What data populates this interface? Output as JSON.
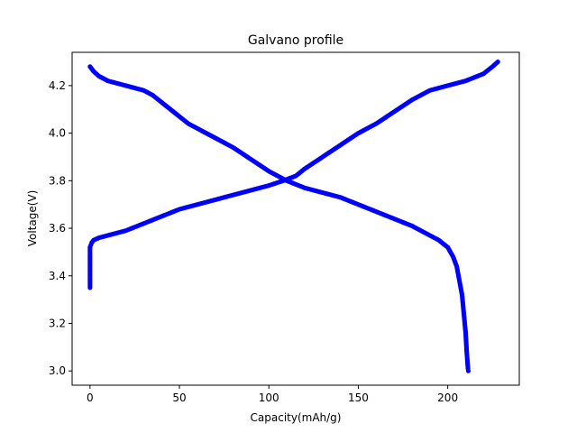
{
  "chart_data": {
    "type": "scatter",
    "title": "Galvano profile",
    "xlabel": "Capacity(mAh/g)",
    "ylabel": "Voltage(V)",
    "xlim": [
      -10,
      240
    ],
    "ylim": [
      2.94,
      4.34
    ],
    "xticks": [
      0,
      50,
      100,
      150,
      200
    ],
    "yticks": [
      3.0,
      3.2,
      3.4,
      3.6,
      3.8,
      4.0,
      4.2
    ],
    "xtick_labels": [
      "0",
      "50",
      "100",
      "150",
      "200"
    ],
    "ytick_labels": [
      "3.0",
      "3.2",
      "3.4",
      "3.6",
      "3.8",
      "4.0",
      "4.2"
    ],
    "grid": false,
    "marker_color": "#0000ff",
    "series": [
      {
        "x": [
          0,
          0,
          0,
          0,
          0,
          0.5,
          1,
          2,
          5,
          10,
          20,
          30,
          40,
          50,
          60,
          70,
          80,
          90,
          100,
          108,
          115,
          120,
          130,
          140,
          150,
          160,
          170,
          180,
          190,
          195,
          200,
          210,
          220,
          225,
          228
        ],
        "values": [
          3.35,
          3.4,
          3.45,
          3.5,
          3.52,
          3.53,
          3.54,
          3.55,
          3.56,
          3.57,
          3.59,
          3.62,
          3.65,
          3.68,
          3.7,
          3.72,
          3.74,
          3.76,
          3.78,
          3.8,
          3.82,
          3.85,
          3.9,
          3.95,
          4.0,
          4.04,
          4.09,
          4.14,
          4.18,
          4.19,
          4.2,
          4.22,
          4.25,
          4.28,
          4.3
        ]
      },
      {
        "x": [
          0,
          2,
          5,
          10,
          15,
          20,
          25,
          30,
          35,
          40,
          45,
          50,
          55,
          60,
          70,
          80,
          90,
          100,
          105,
          110,
          120,
          130,
          140,
          150,
          160,
          170,
          180,
          190,
          195,
          200,
          203,
          205,
          206,
          207,
          208,
          208.5,
          209,
          209.5,
          210,
          210.3,
          210.6,
          210.9,
          211.1,
          211.3,
          211.5
        ],
        "values": [
          4.28,
          4.26,
          4.24,
          4.22,
          4.21,
          4.2,
          4.19,
          4.18,
          4.16,
          4.13,
          4.1,
          4.07,
          4.04,
          4.02,
          3.98,
          3.94,
          3.89,
          3.84,
          3.82,
          3.8,
          3.77,
          3.75,
          3.73,
          3.7,
          3.67,
          3.64,
          3.61,
          3.57,
          3.55,
          3.52,
          3.48,
          3.44,
          3.4,
          3.36,
          3.32,
          3.28,
          3.24,
          3.2,
          3.16,
          3.12,
          3.08,
          3.05,
          3.03,
          3.01,
          3.0
        ]
      }
    ]
  }
}
